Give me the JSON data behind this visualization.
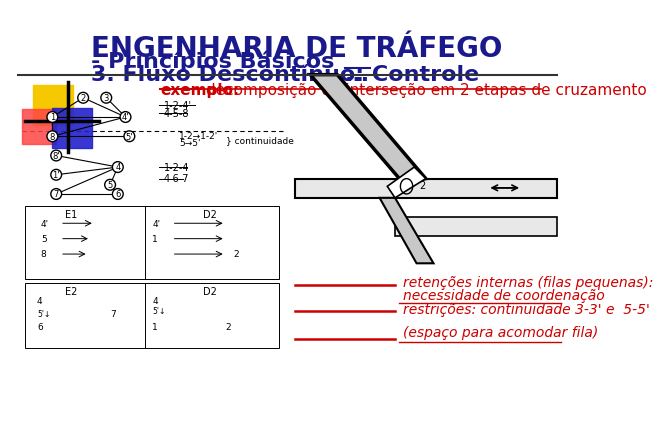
{
  "title_line1": "ENGENHARIA DE TRÁFEGO",
  "title_line2": "- Princípios Básicos",
  "title_line3": "3. Fluxo Descontínuo: Controle",
  "title_line3_dots": "...",
  "title_color": "#1a1a8c",
  "title_fontsize": 20,
  "subtitle_fontsize": 16,
  "example_label": "exemplo:",
  "example_rest": " decomposição da interseção em 2 etapas de cruzamento",
  "example_color": "#cc0000",
  "example_fontsize": 11,
  "text1_line1": "retenções internas (filas pequenas):",
  "text1_line2": "necessidade de coordenação",
  "text2_line1": "restrições: continuidade 3-3' e  5-5'",
  "text2_line2": "(espaço para acomodar fila)",
  "text_color": "#cc0000",
  "text_fontsize": 10,
  "bg_color": "#ffffff",
  "line_color": "#cc0000",
  "decor_yellow": "#f5c800",
  "decor_red": "#ff4444",
  "decor_blue": "#2222cc",
  "separator_line_color": "#333333"
}
